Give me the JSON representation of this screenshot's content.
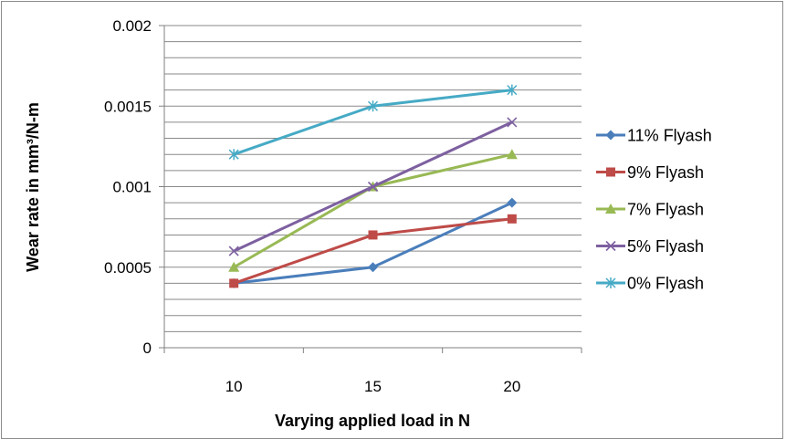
{
  "chart_data": {
    "type": "line",
    "title": "",
    "xlabel": "Varying applied load in N",
    "ylabel": "Wear rate in mm³/N-m",
    "categories": [
      "10",
      "15",
      "20"
    ],
    "ylim": [
      0,
      0.002
    ],
    "y_major_ticks": [
      "0",
      "0.0005",
      "0.001",
      "0.0015",
      "0.002"
    ],
    "y_major_values": [
      0,
      0.0005,
      0.001,
      0.0015,
      0.002
    ],
    "y_minor_step": 0.0001,
    "grid": true,
    "legend_position": "right",
    "series": [
      {
        "name": "11% Flyash",
        "values": [
          0.0004,
          0.0005,
          0.0009
        ],
        "color": "#4a7ebb",
        "marker": "diamond"
      },
      {
        "name": "9% Flyash",
        "values": [
          0.0004,
          0.0007,
          0.0008
        ],
        "color": "#be4b48",
        "marker": "square"
      },
      {
        "name": "7% Flyash",
        "values": [
          0.0005,
          0.001,
          0.0012
        ],
        "color": "#98b954",
        "marker": "triangle"
      },
      {
        "name": "5% Flyash",
        "values": [
          0.0006,
          0.001,
          0.0014
        ],
        "color": "#7d60a0",
        "marker": "x"
      },
      {
        "name": "0% Flyash",
        "values": [
          0.0012,
          0.0015,
          0.0016
        ],
        "color": "#46aac5",
        "marker": "star"
      }
    ]
  }
}
